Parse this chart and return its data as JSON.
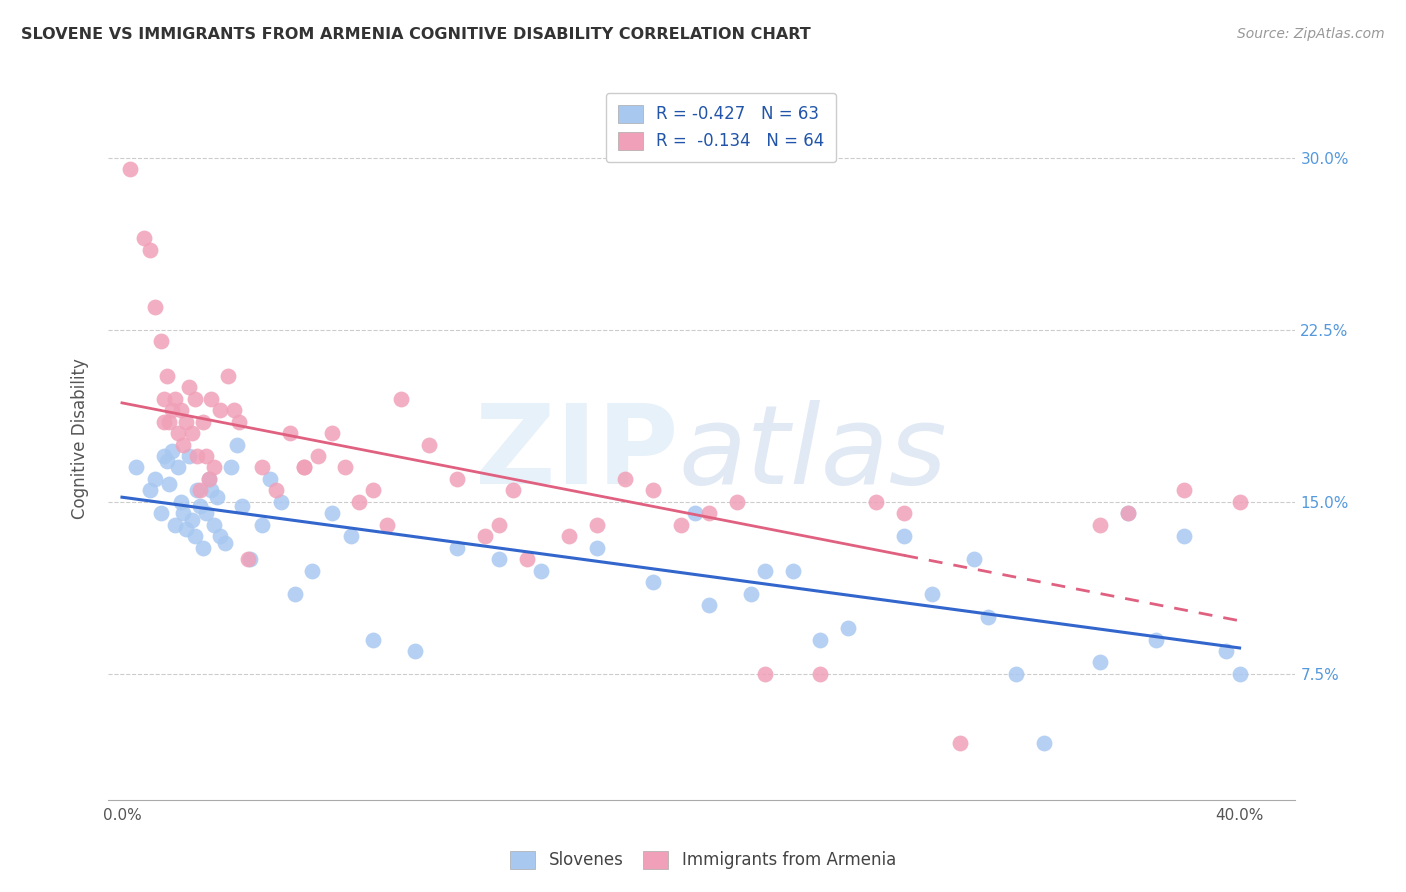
{
  "title": "SLOVENE VS IMMIGRANTS FROM ARMENIA COGNITIVE DISABILITY CORRELATION CHART",
  "source": "Source: ZipAtlas.com",
  "ylabel": "Cognitive Disability",
  "ytick_vals": [
    7.5,
    15.0,
    22.5,
    30.0
  ],
  "xlim": [
    -0.5,
    42.0
  ],
  "ylim": [
    2.0,
    33.5
  ],
  "color_blue": "#A8C8F0",
  "color_pink": "#F0A0B8",
  "line_blue": "#3366CC",
  "line_pink": "#E06080",
  "legend_r1": "R = -0.427   N = 63",
  "legend_r2": "R =  -0.134   N = 64",
  "slovene_x": [
    0.5,
    1.0,
    1.2,
    1.4,
    1.5,
    1.6,
    1.7,
    1.8,
    1.9,
    2.0,
    2.1,
    2.2,
    2.3,
    2.4,
    2.5,
    2.6,
    2.7,
    2.8,
    2.9,
    3.0,
    3.1,
    3.2,
    3.3,
    3.4,
    3.5,
    3.7,
    3.9,
    4.1,
    4.3,
    4.6,
    5.0,
    5.3,
    5.7,
    6.2,
    6.8,
    7.5,
    8.2,
    9.0,
    10.5,
    12.0,
    13.5,
    15.0,
    17.0,
    19.0,
    21.0,
    24.0,
    20.5,
    22.5,
    25.0,
    29.0,
    31.0,
    26.0,
    33.0,
    37.0,
    39.5,
    35.0,
    28.0,
    30.5,
    32.0,
    36.0,
    38.0,
    40.0,
    23.0
  ],
  "slovene_y": [
    16.5,
    15.5,
    16.0,
    14.5,
    17.0,
    16.8,
    15.8,
    17.2,
    14.0,
    16.5,
    15.0,
    14.5,
    13.8,
    17.0,
    14.2,
    13.5,
    15.5,
    14.8,
    13.0,
    14.5,
    16.0,
    15.5,
    14.0,
    15.2,
    13.5,
    13.2,
    16.5,
    17.5,
    14.8,
    12.5,
    14.0,
    16.0,
    15.0,
    11.0,
    12.0,
    14.5,
    13.5,
    9.0,
    8.5,
    13.0,
    12.5,
    12.0,
    13.0,
    11.5,
    10.5,
    12.0,
    14.5,
    11.0,
    9.0,
    11.0,
    10.0,
    9.5,
    4.5,
    9.0,
    8.5,
    8.0,
    13.5,
    12.5,
    7.5,
    14.5,
    13.5,
    7.5,
    12.0
  ],
  "armenia_x": [
    0.3,
    0.8,
    1.0,
    1.2,
    1.4,
    1.5,
    1.6,
    1.7,
    1.8,
    1.9,
    2.0,
    2.1,
    2.2,
    2.3,
    2.4,
    2.5,
    2.6,
    2.7,
    2.8,
    2.9,
    3.0,
    3.1,
    3.2,
    3.3,
    3.5,
    3.8,
    4.0,
    4.2,
    4.5,
    5.0,
    5.5,
    6.0,
    6.5,
    7.0,
    7.5,
    8.0,
    8.5,
    9.0,
    9.5,
    10.0,
    11.0,
    12.0,
    13.0,
    14.0,
    14.5,
    16.0,
    17.0,
    18.0,
    19.0,
    20.0,
    21.0,
    22.0,
    23.0,
    25.0,
    27.0,
    28.0,
    30.0,
    6.5,
    13.5,
    35.0,
    36.0,
    38.0,
    40.0,
    1.5
  ],
  "armenia_y": [
    29.5,
    26.5,
    26.0,
    23.5,
    22.0,
    19.5,
    20.5,
    18.5,
    19.0,
    19.5,
    18.0,
    19.0,
    17.5,
    18.5,
    20.0,
    18.0,
    19.5,
    17.0,
    15.5,
    18.5,
    17.0,
    16.0,
    19.5,
    16.5,
    19.0,
    20.5,
    19.0,
    18.5,
    12.5,
    16.5,
    15.5,
    18.0,
    16.5,
    17.0,
    18.0,
    16.5,
    15.0,
    15.5,
    14.0,
    19.5,
    17.5,
    16.0,
    13.5,
    15.5,
    12.5,
    13.5,
    14.0,
    16.0,
    15.5,
    14.0,
    14.5,
    15.0,
    7.5,
    7.5,
    15.0,
    14.5,
    4.5,
    16.5,
    14.0,
    14.0,
    14.5,
    15.5,
    15.0,
    18.5
  ]
}
